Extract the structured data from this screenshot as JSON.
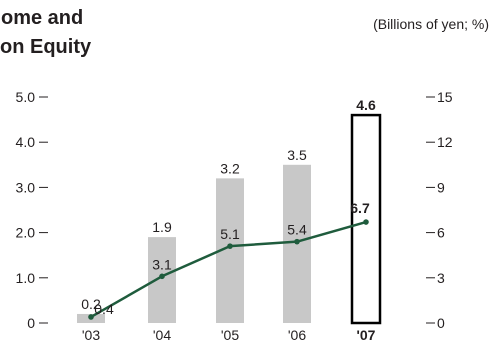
{
  "title": {
    "line1": "ome and",
    "line2": "on Equity"
  },
  "unit_note": "(Billions of yen; %)",
  "colors": {
    "bar": "#c8c8c8",
    "highlight_bar_fill": "#ffffff",
    "highlight_bar_stroke": "#000000",
    "line": "#1f5c3d",
    "text": "#231f20"
  },
  "chart_data": {
    "type": "bar+line",
    "categories": [
      "'03",
      "'04",
      "'05",
      "'06",
      "'07"
    ],
    "highlight_category": "'07",
    "series": [
      {
        "type": "bar",
        "axis": "left",
        "values": [
          0.2,
          1.9,
          3.2,
          3.5,
          4.6
        ],
        "labels": [
          "0.2",
          "1.9",
          "3.2",
          "3.5",
          "4.6"
        ]
      },
      {
        "type": "line",
        "axis": "right",
        "values": [
          0.4,
          3.1,
          5.1,
          5.4,
          6.7
        ],
        "labels": [
          "0.4",
          "3.1",
          "5.1",
          "5.4",
          "6.7"
        ]
      }
    ],
    "left_axis": {
      "ylim": [
        0,
        5
      ],
      "ticks": [
        0,
        1,
        2,
        3,
        4,
        5
      ],
      "tick_labels": [
        "0",
        "1.0",
        "2.0",
        "3.0",
        "4.0",
        "5.0"
      ]
    },
    "right_axis": {
      "ylim": [
        0,
        15
      ],
      "ticks": [
        0,
        3,
        6,
        9,
        12,
        15
      ],
      "tick_labels": [
        "0",
        "3",
        "6",
        "9",
        "12",
        "15"
      ]
    },
    "grid": false,
    "legend": "none"
  }
}
